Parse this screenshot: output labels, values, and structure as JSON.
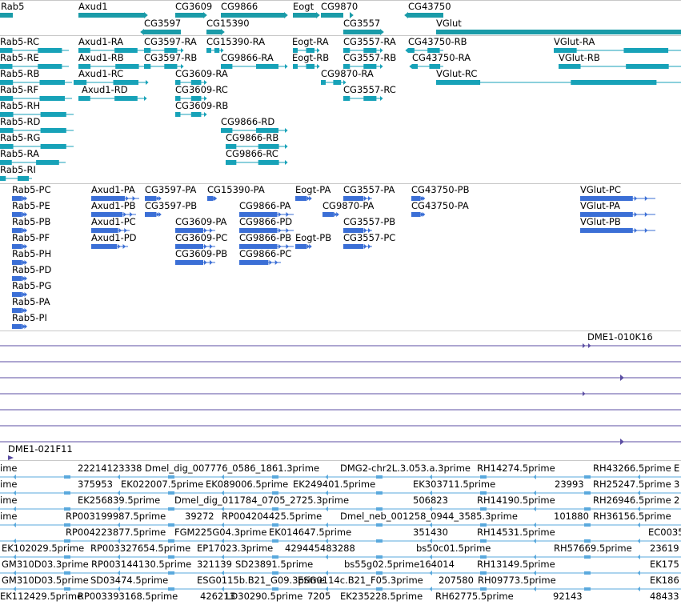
{
  "colors": {
    "gene": "#1a9ba8",
    "transcript": "#17a2b8",
    "translation": "#3b6fd6",
    "contig": "#5b4ea3",
    "est": "#5aa9dd",
    "separator": "#c8c8c8"
  },
  "gene_labels": [
    "Rab5",
    "Axud1",
    "CG3609",
    "CG9866",
    "Eogt",
    "CG9870",
    "CG43750",
    "CG3597",
    "CG15390",
    "CG3557",
    "VGlut"
  ],
  "transcript_labels": [
    "Rab5-RC",
    "Rab5-RE",
    "Rab5-RB",
    "Rab5-RF",
    "Rab5-RH",
    "Rab5-RD",
    "Rab5-RG",
    "Rab5-RA",
    "Rab5-RI",
    "Axud1-RA",
    "Axud1-RB",
    "Axud1-RC",
    "Axud1-RD",
    "CG3597-RA",
    "CG3597-RB",
    "CG15390-RA",
    "CG3609-RA",
    "CG3609-RC",
    "CG3609-RB",
    "CG9866-RA",
    "CG9866-RD",
    "CG9866-RB",
    "CG9866-RC",
    "Eogt-RA",
    "Eogt-RB",
    "CG9870-RA",
    "CG3557-RA",
    "CG3557-RB",
    "CG3557-RC",
    "CG43750-RB",
    "CG43750-RA",
    "VGlut-RA",
    "VGlut-RB",
    "VGlut-RC"
  ],
  "protein_labels": [
    "Rab5-PC",
    "Rab5-PE",
    "Rab5-PB",
    "Rab5-PF",
    "Rab5-PH",
    "Rab5-PD",
    "Rab5-PG",
    "Rab5-PA",
    "Rab5-PI",
    "Axud1-PA",
    "Axud1-PB",
    "Axud1-PC",
    "Axud1-PD",
    "CG3597-PA",
    "CG3597-PB",
    "CG15390-PA",
    "CG3609-PA",
    "CG3609-PC",
    "CG3609-PB",
    "CG9866-PA",
    "CG9866-PD",
    "CG9866-PB",
    "CG9866-PC",
    "Eogt-PA",
    "Eogt-PB",
    "CG9870-PA",
    "CG3557-PA",
    "CG3557-PB",
    "CG3557-PC",
    "CG43750-PB",
    "CG43750-PA",
    "VGlut-PC",
    "VGlut-PA",
    "VGlut-PB"
  ],
  "clone_labels": [
    "DME1-010K16",
    "DME1-021F11"
  ],
  "est_labels": [
    "ime",
    "22214123338",
    "Dmel_dig_007776_0586_1861.3prime",
    "DMG2-chr2L.3.053.a.3prime",
    "RH14274.5prime",
    "RH43266.5prime",
    "E",
    "375953",
    "EK022007.5prime",
    "EK089006.5prime",
    "EK249401.5prime",
    "EK303711.5prime",
    "23993",
    "RH25247.5prime",
    "3",
    "EK256839.5prime",
    "Dmel_dig_011784_0705_2725.3prime",
    "506823",
    "RH14190.5prime",
    "RH26946.5prime",
    "2",
    "RP003199987.5prime",
    "39272",
    "RP004204425.5prime",
    "Dmel_neb_001258_0944_3585.3prime",
    "101880",
    "RH36156.5prime",
    "RP004223877.5prime",
    "FGM225G04.3prime",
    "EK014647.5prime",
    "351430",
    "RH14531.5prime",
    "EC0035",
    "EK102029.5prime",
    "RP003327654.5prime",
    "EP17023.3prime",
    "429445483288",
    "bs50c01.5prime",
    "RH57669.5prime",
    "23619",
    "GM310D03.3prime",
    "RP003144130.5prime",
    "321139",
    "SD23891.5prime",
    "bs55g02.5prime",
    "164014",
    "RH13149.5prime",
    "EK175",
    "GM310D03.5prime",
    "SD03474.5prime",
    "ESG0115b.B21_G09.3prime",
    "ESG0114c.B21_F05.3prime",
    "207580",
    "RH09773.5prime",
    "EK186",
    "EK112429.5prime",
    "RP003393168.5prime",
    "426213",
    "LD30290.5prime",
    "7205",
    "EK235228.5prime",
    "RH62775.5prime",
    "92143",
    "48433"
  ]
}
